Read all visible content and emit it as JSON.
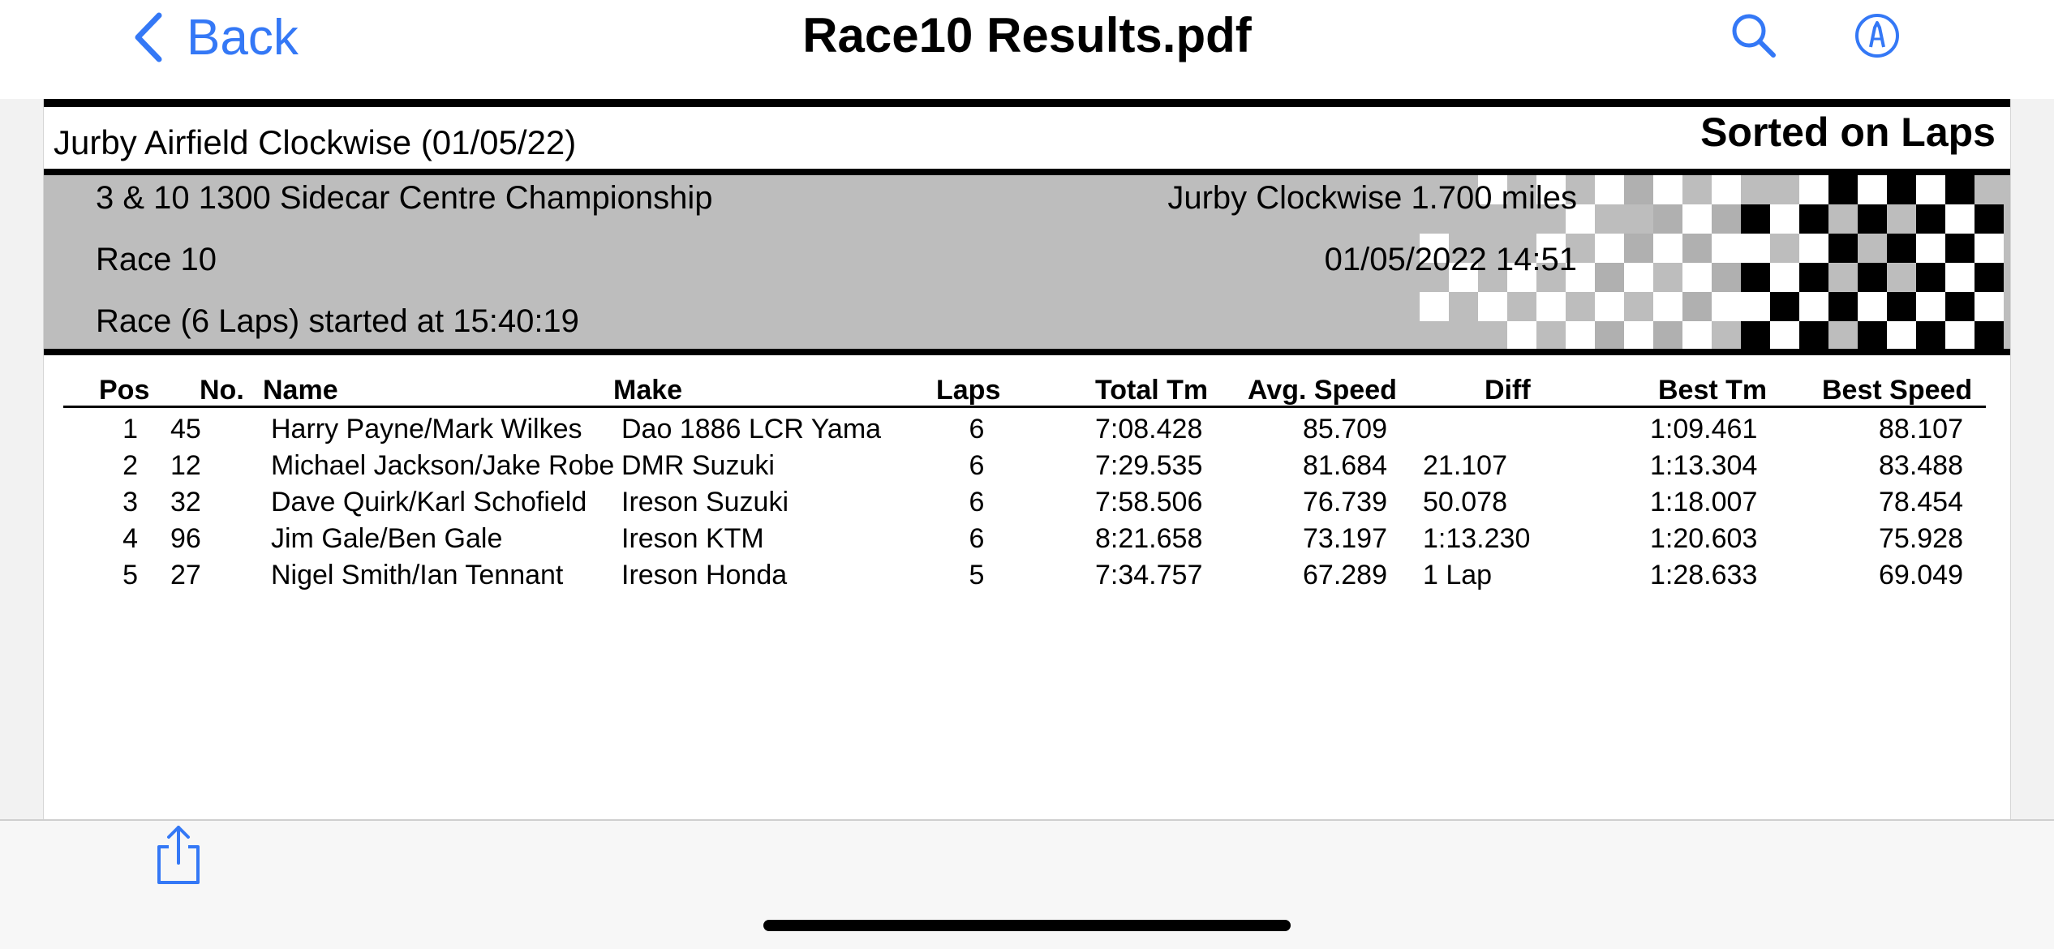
{
  "nav": {
    "back_label": "Back",
    "title": "Race10 Results.pdf",
    "search_icon": "search-icon",
    "markup_icon": "markup-pen-icon",
    "accent_color": "#3478f6"
  },
  "document": {
    "venue": "Jurby Airfield Clockwise (01/05/22)",
    "sort_label": "Sorted on Laps",
    "championship": "3 & 10 1300 Sidecar Centre Championship",
    "race_name": "Race 10",
    "race_start": "Race (6 Laps) started at 15:40:19",
    "circuit": "Jurby Clockwise 1.700 miles",
    "datetime": "01/05/2022 14:51"
  },
  "table": {
    "headers": {
      "pos": "Pos",
      "no": "No.",
      "name": "Name",
      "make": "Make",
      "laps": "Laps",
      "total": "Total Tm",
      "avg": "Avg. Speed",
      "diff": "Diff",
      "best_tm": "Best Tm",
      "best_speed": "Best Speed"
    },
    "rows": [
      {
        "pos": "1",
        "no": "45",
        "name": "Harry Payne/Mark Wilkes",
        "make": "Dao 1886 LCR Yama",
        "laps": "6",
        "total": "7:08.428",
        "avg": "85.709",
        "diff": "",
        "best_tm": "1:09.461",
        "best_speed": "88.107"
      },
      {
        "pos": "2",
        "no": "12",
        "name": "Michael Jackson/Jake Robe",
        "make": "DMR Suzuki",
        "laps": "6",
        "total": "7:29.535",
        "avg": "81.684",
        "diff": "21.107",
        "best_tm": "1:13.304",
        "best_speed": "83.488"
      },
      {
        "pos": "3",
        "no": "32",
        "name": "Dave Quirk/Karl Schofield",
        "make": "Ireson Suzuki",
        "laps": "6",
        "total": "7:58.506",
        "avg": "76.739",
        "diff": "50.078",
        "best_tm": "1:18.007",
        "best_speed": "78.454"
      },
      {
        "pos": "4",
        "no": "96",
        "name": "Jim Gale/Ben Gale",
        "make": "Ireson KTM",
        "laps": "6",
        "total": "8:21.658",
        "avg": "73.197",
        "diff": "1:13.230",
        "best_tm": "1:20.603",
        "best_speed": "75.928"
      },
      {
        "pos": "5",
        "no": "27",
        "name": "Nigel Smith/Ian Tennant",
        "make": "Ireson Honda",
        "laps": "5",
        "total": "7:34.757",
        "avg": "67.289",
        "diff": "1 Lap",
        "best_tm": "1:28.633",
        "best_speed": "69.049"
      }
    ]
  },
  "toolbar": {
    "share_icon": "share-icon"
  }
}
